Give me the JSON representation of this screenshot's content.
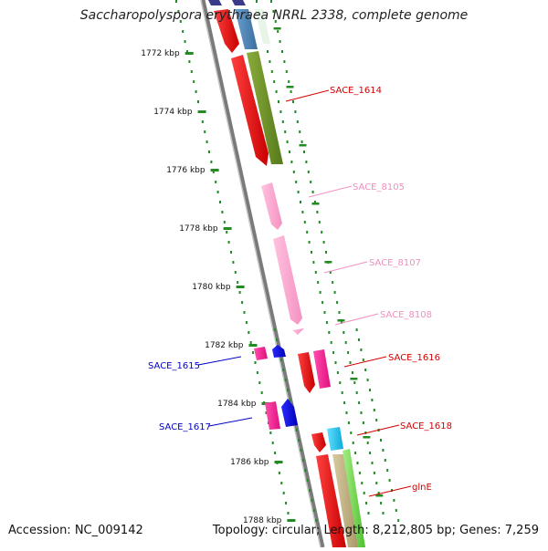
{
  "title": "Saccharopolyspora erythraea NRRL 2338, complete genome",
  "accession_text": "Accession: NC_009142",
  "summary_text": "Topology: circular; Length: 8,212,805 bp; Genes: 7,259",
  "scale_ticks": [
    "1772 kbp",
    "1774 kbp",
    "1776 kbp",
    "1778 kbp",
    "1780 kbp",
    "1782 kbp",
    "1784 kbp",
    "1786 kbp",
    "1788 kbp"
  ],
  "gene_labels": [
    {
      "name": "SACE_1614",
      "color": "#d40000"
    },
    {
      "name": "SACE_8105",
      "color": "#f08fc0"
    },
    {
      "name": "SACE_8107",
      "color": "#f08fc0"
    },
    {
      "name": "SACE_8108",
      "color": "#f08fc0"
    },
    {
      "name": "SACE_1616",
      "color": "#d40000"
    },
    {
      "name": "SACE_1618",
      "color": "#d40000"
    },
    {
      "name": "glnE",
      "color": "#d40000"
    },
    {
      "name": "SACE_1615",
      "color": "#0000c8"
    },
    {
      "name": "SACE_1617",
      "color": "#0000c8"
    }
  ],
  "colors": {
    "red": "#ee0000",
    "olive": "#6b8e23",
    "pink": "#ffa6cf",
    "magenta": "#ff1493",
    "blue": "#0000ee",
    "steelblue": "#4682b4",
    "navy": "#3a3a8a",
    "cyan": "#1ec8f0",
    "tan": "#c2b280",
    "lightgreen": "#7ddc5a",
    "backbone": "#808080",
    "tick": "#228b22"
  }
}
